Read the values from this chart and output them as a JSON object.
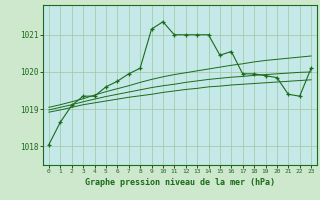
{
  "xlabel": "Graphe pression niveau de la mer (hPa)",
  "xlim": [
    -0.5,
    23.5
  ],
  "ylim": [
    1017.5,
    1021.8
  ],
  "yticks": [
    1018,
    1019,
    1020,
    1021
  ],
  "xticks": [
    0,
    1,
    2,
    3,
    4,
    5,
    6,
    7,
    8,
    9,
    10,
    11,
    12,
    13,
    14,
    15,
    16,
    17,
    18,
    19,
    20,
    21,
    22,
    23
  ],
  "bg_outer": "#cde8cd",
  "bg_inner": "#c5e8e8",
  "grid_color": "#a0c8a0",
  "line_color": "#1a6b1a",
  "main_line": {
    "x": [
      0,
      1,
      2,
      3,
      4,
      5,
      6,
      7,
      8,
      9,
      10,
      11,
      12,
      13,
      14,
      15,
      16,
      17,
      18,
      19,
      20,
      21,
      22,
      23
    ],
    "y": [
      1018.05,
      1018.65,
      1019.1,
      1019.35,
      1019.35,
      1019.6,
      1019.75,
      1019.95,
      1020.1,
      1021.15,
      1021.35,
      1021.0,
      1021.0,
      1021.0,
      1021.0,
      1020.45,
      1020.55,
      1019.95,
      1019.95,
      1019.9,
      1019.85,
      1019.4,
      1019.35,
      1020.1
    ]
  },
  "upper_line": {
    "x": [
      0,
      1,
      2,
      3,
      4,
      5,
      6,
      7,
      8,
      9,
      10,
      11,
      12,
      13,
      14,
      15,
      16,
      17,
      18,
      19,
      20,
      21,
      22,
      23
    ],
    "y": [
      1019.05,
      1019.12,
      1019.2,
      1019.28,
      1019.38,
      1019.47,
      1019.55,
      1019.63,
      1019.72,
      1019.8,
      1019.87,
      1019.93,
      1019.98,
      1020.03,
      1020.08,
      1020.13,
      1020.18,
      1020.22,
      1020.27,
      1020.31,
      1020.34,
      1020.37,
      1020.4,
      1020.43
    ]
  },
  "mid_line": {
    "x": [
      0,
      1,
      2,
      3,
      4,
      5,
      6,
      7,
      8,
      9,
      10,
      11,
      12,
      13,
      14,
      15,
      16,
      17,
      18,
      19,
      20,
      21,
      22,
      23
    ],
    "y": [
      1018.98,
      1019.05,
      1019.12,
      1019.2,
      1019.27,
      1019.34,
      1019.4,
      1019.46,
      1019.52,
      1019.58,
      1019.63,
      1019.67,
      1019.72,
      1019.76,
      1019.8,
      1019.83,
      1019.86,
      1019.88,
      1019.91,
      1019.93,
      1019.95,
      1019.97,
      1019.99,
      1020.0
    ]
  },
  "lower_line": {
    "x": [
      0,
      1,
      2,
      3,
      4,
      5,
      6,
      7,
      8,
      9,
      10,
      11,
      12,
      13,
      14,
      15,
      16,
      17,
      18,
      19,
      20,
      21,
      22,
      23
    ],
    "y": [
      1018.92,
      1018.98,
      1019.05,
      1019.12,
      1019.17,
      1019.22,
      1019.27,
      1019.32,
      1019.36,
      1019.4,
      1019.45,
      1019.49,
      1019.53,
      1019.56,
      1019.6,
      1019.62,
      1019.65,
      1019.67,
      1019.69,
      1019.71,
      1019.73,
      1019.75,
      1019.77,
      1019.79
    ]
  }
}
